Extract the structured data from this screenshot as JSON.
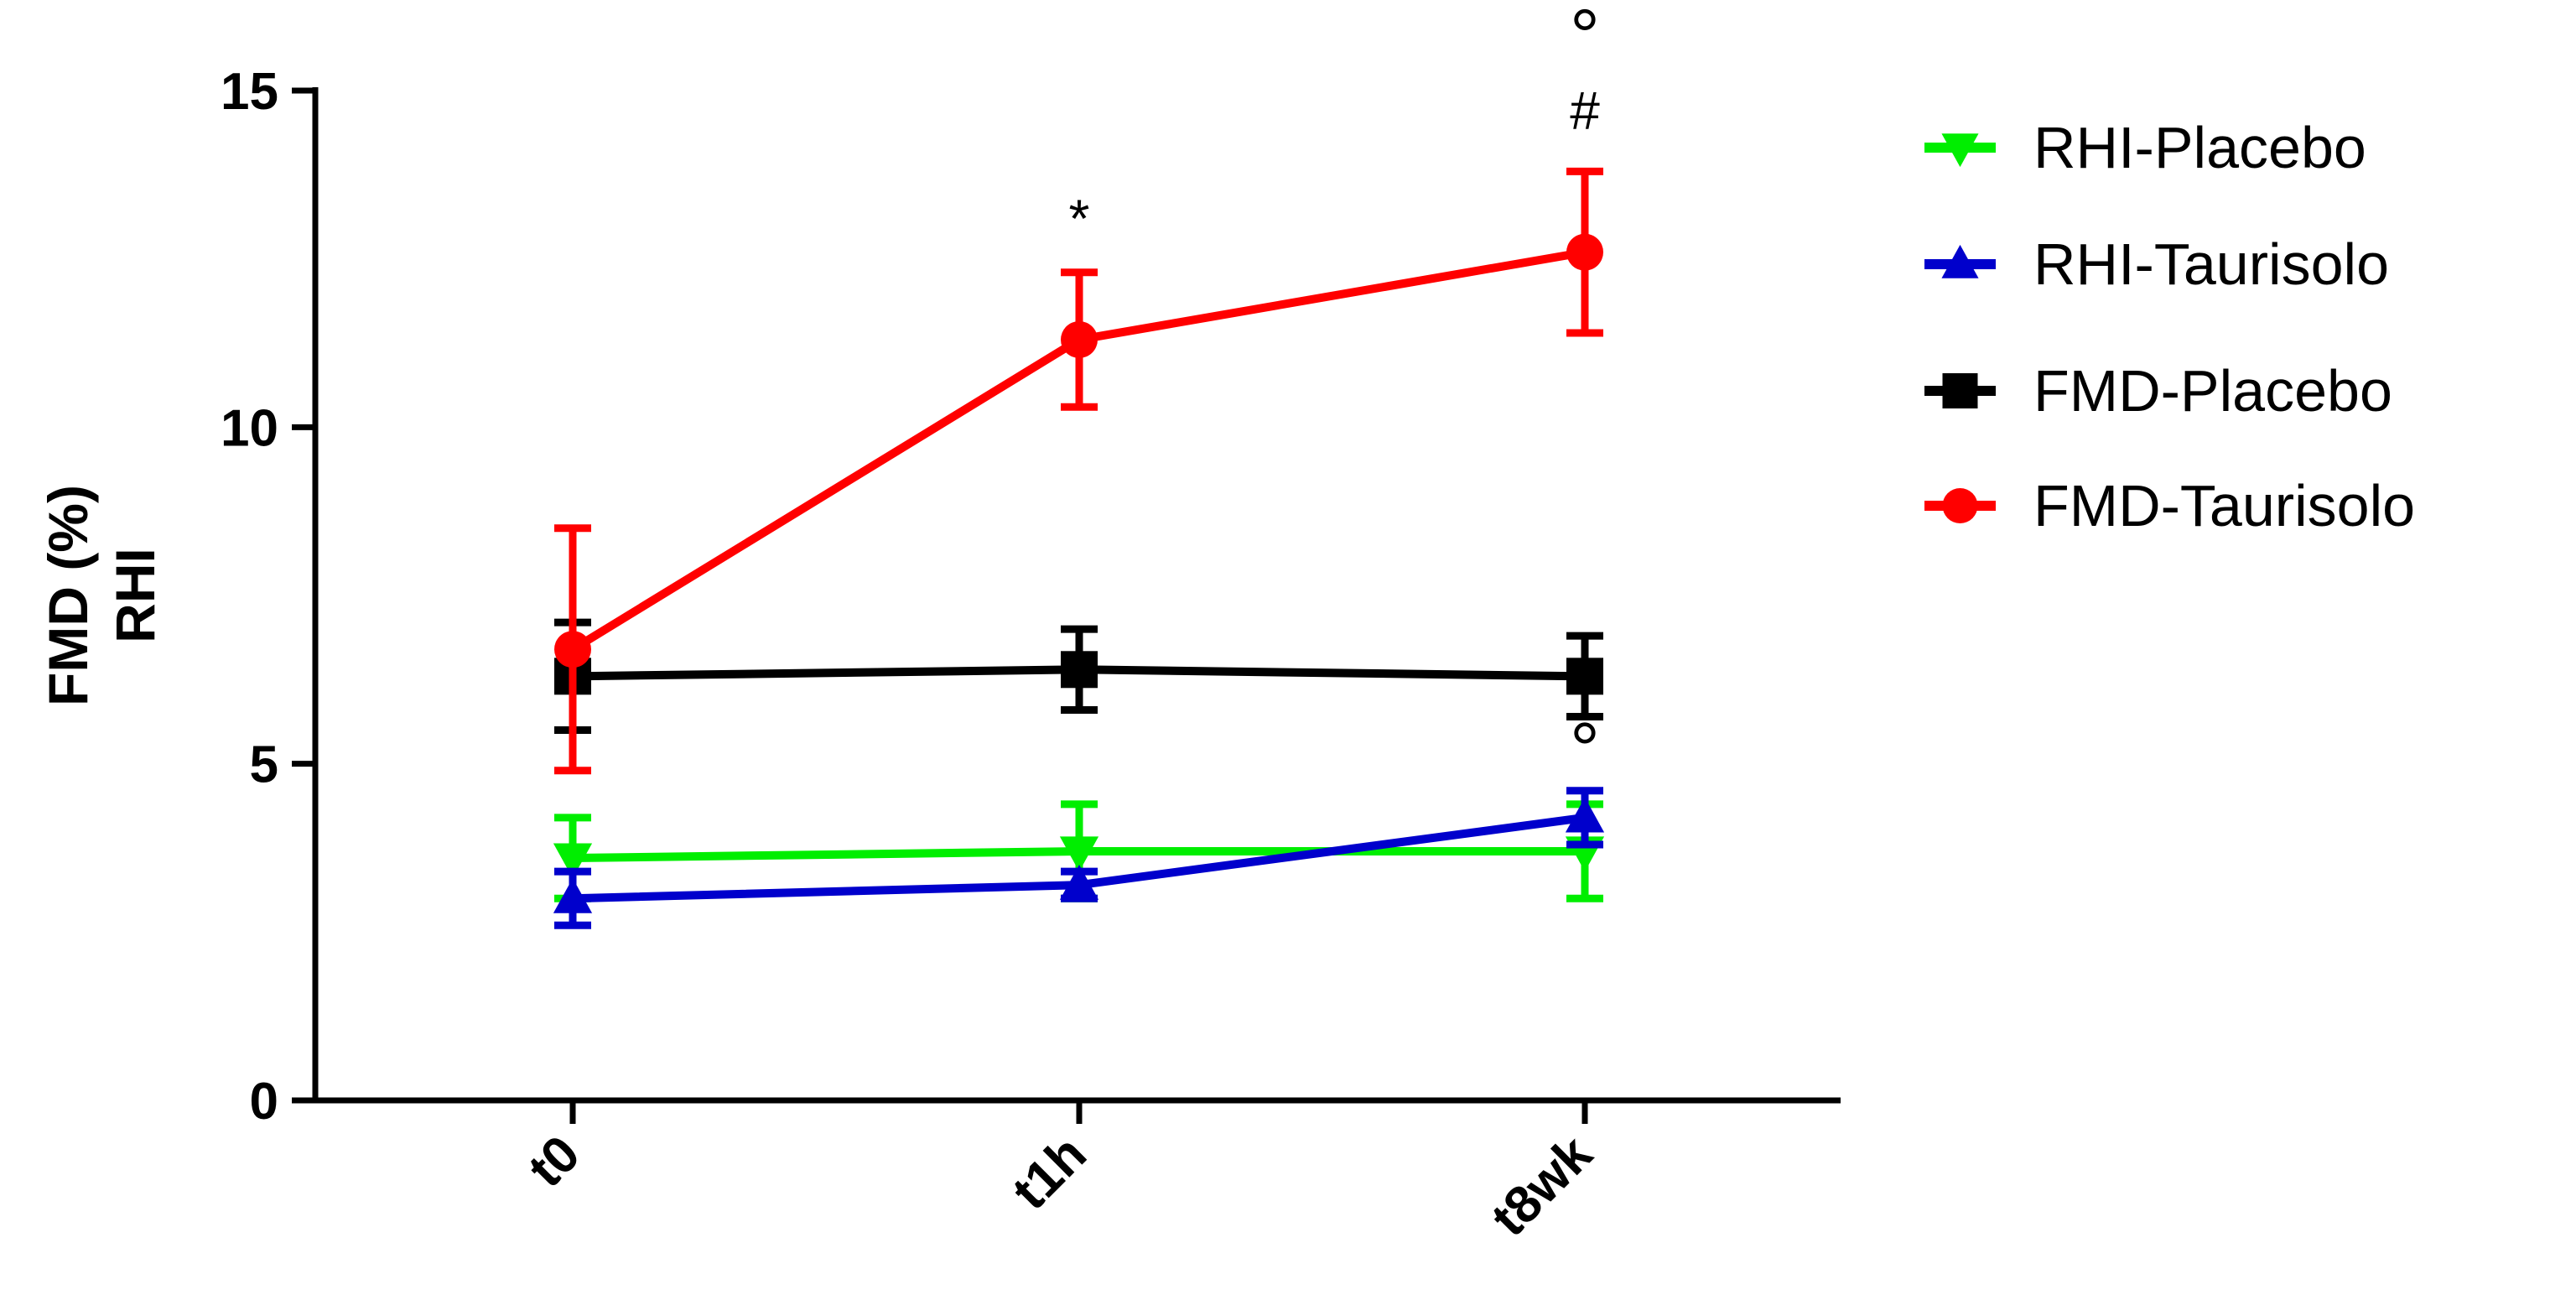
{
  "chart_data": {
    "type": "line",
    "title": "",
    "ylabel_lines": [
      "FMD  (%)",
      "RHI"
    ],
    "xlabel": "",
    "categories": [
      "t0",
      "t1h",
      "t8wk"
    ],
    "yticks": [
      "0",
      "5",
      "10",
      "15"
    ],
    "ylim": [
      0,
      15
    ],
    "grid": false,
    "legend_position": "right",
    "series": [
      {
        "name": "RHI-Placebo",
        "color": "#00ee00",
        "marker": "triangle-down",
        "values": [
          3.6,
          3.7,
          3.7
        ],
        "err": [
          0.6,
          0.7,
          0.7
        ]
      },
      {
        "name": "RHI-Taurisolo",
        "color": "#0000cc",
        "marker": "triangle-up",
        "values": [
          3.0,
          3.2,
          4.2
        ],
        "err": [
          0.4,
          0.2,
          0.4
        ]
      },
      {
        "name": "FMD-Placebo",
        "color": "#000000",
        "marker": "square",
        "values": [
          6.3,
          6.4,
          6.3
        ],
        "err": [
          0.8,
          0.6,
          0.6
        ]
      },
      {
        "name": "FMD-Taurisolo",
        "color": "#ff0000",
        "marker": "circle",
        "values": [
          6.7,
          11.3,
          12.6
        ],
        "err": [
          1.8,
          1.0,
          1.2
        ]
      }
    ],
    "annotations": [
      {
        "text": "*",
        "category": "t1h",
        "y": 13.1
      },
      {
        "text": "#",
        "category": "t8wk",
        "y": 14.7
      },
      {
        "text": "°",
        "category": "t8wk",
        "y": 15.8
      },
      {
        "text": "°",
        "category": "t8wk",
        "y": 5.2
      }
    ]
  }
}
